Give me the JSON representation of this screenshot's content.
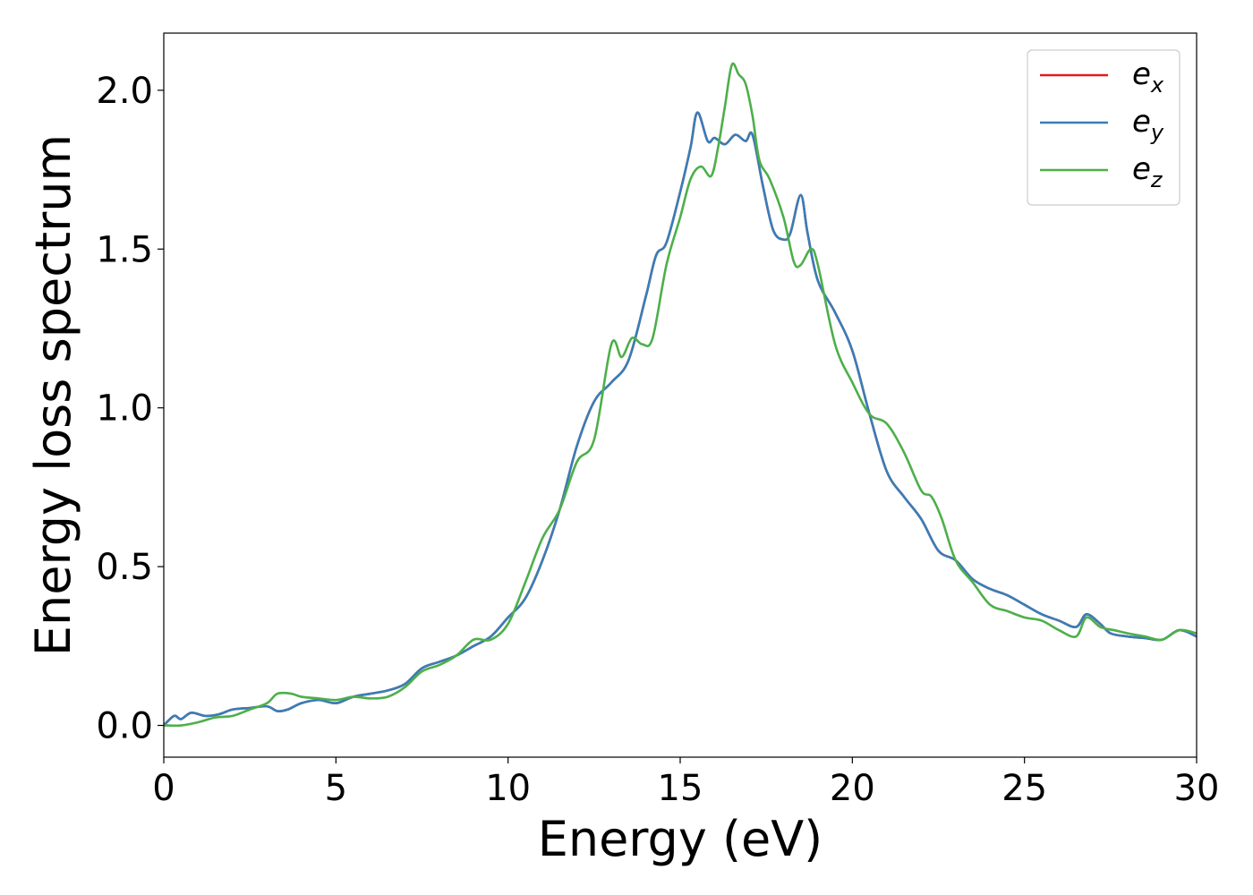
{
  "chart_data": {
    "type": "line",
    "title": "",
    "xlabel": "Energy (eV)",
    "ylabel": "Energy loss spectrum",
    "xlim": [
      0,
      30
    ],
    "ylim": [
      -0.1,
      2.18
    ],
    "xticks": [
      0,
      5,
      10,
      15,
      20,
      25,
      30
    ],
    "xtick_labels": [
      "0",
      "5",
      "10",
      "15",
      "20",
      "25",
      "30"
    ],
    "yticks": [
      0.0,
      0.5,
      1.0,
      1.5,
      2.0
    ],
    "ytick_labels": [
      "0.0",
      "0.5",
      "1.0",
      "1.5",
      "2.0"
    ],
    "grid": false,
    "legend_position": "top-right",
    "series": [
      {
        "name": "e",
        "subscript": "x",
        "color": "#e41a1c",
        "x": [
          0,
          0.3,
          0.5,
          0.8,
          1.2,
          1.6,
          2.0,
          2.5,
          3.0,
          3.3,
          3.6,
          4.0,
          4.5,
          5.0,
          5.5,
          6.0,
          6.5,
          7.0,
          7.5,
          8.0,
          8.5,
          9.0,
          9.5,
          10.0,
          10.5,
          11.0,
          11.5,
          12.0,
          12.5,
          13.0,
          13.5,
          14.0,
          14.3,
          14.6,
          15.0,
          15.3,
          15.5,
          15.8,
          16.0,
          16.3,
          16.6,
          16.9,
          17.1,
          17.4,
          17.7,
          18.0,
          18.2,
          18.5,
          18.7,
          19.0,
          19.5,
          20.0,
          20.5,
          21.0,
          21.5,
          22.0,
          22.5,
          23.0,
          23.5,
          24.0,
          24.5,
          25.0,
          25.5,
          26.0,
          26.5,
          26.8,
          27.2,
          27.5,
          28.0,
          28.5,
          29.0,
          29.5,
          30.0
        ],
        "values": [
          0.0,
          0.03,
          0.02,
          0.04,
          0.03,
          0.035,
          0.05,
          0.055,
          0.06,
          0.045,
          0.05,
          0.07,
          0.08,
          0.07,
          0.09,
          0.1,
          0.11,
          0.13,
          0.18,
          0.2,
          0.22,
          0.25,
          0.28,
          0.34,
          0.4,
          0.52,
          0.68,
          0.88,
          1.02,
          1.08,
          1.15,
          1.35,
          1.48,
          1.52,
          1.68,
          1.82,
          1.93,
          1.84,
          1.85,
          1.83,
          1.86,
          1.84,
          1.86,
          1.7,
          1.56,
          1.53,
          1.55,
          1.67,
          1.55,
          1.4,
          1.3,
          1.18,
          0.98,
          0.8,
          0.72,
          0.65,
          0.55,
          0.52,
          0.46,
          0.43,
          0.41,
          0.38,
          0.35,
          0.33,
          0.31,
          0.35,
          0.32,
          0.29,
          0.28,
          0.275,
          0.27,
          0.3,
          0.28
        ]
      },
      {
        "name": "e",
        "subscript": "y",
        "color": "#377eb8",
        "x": [
          0,
          0.3,
          0.5,
          0.8,
          1.2,
          1.6,
          2.0,
          2.5,
          3.0,
          3.3,
          3.6,
          4.0,
          4.5,
          5.0,
          5.5,
          6.0,
          6.5,
          7.0,
          7.5,
          8.0,
          8.5,
          9.0,
          9.5,
          10.0,
          10.5,
          11.0,
          11.5,
          12.0,
          12.5,
          13.0,
          13.5,
          14.0,
          14.3,
          14.6,
          15.0,
          15.3,
          15.5,
          15.8,
          16.0,
          16.3,
          16.6,
          16.9,
          17.1,
          17.4,
          17.7,
          18.0,
          18.2,
          18.5,
          18.7,
          19.0,
          19.5,
          20.0,
          20.5,
          21.0,
          21.5,
          22.0,
          22.5,
          23.0,
          23.5,
          24.0,
          24.5,
          25.0,
          25.5,
          26.0,
          26.5,
          26.8,
          27.2,
          27.5,
          28.0,
          28.5,
          29.0,
          29.5,
          30.0
        ],
        "values": [
          0.0,
          0.03,
          0.02,
          0.04,
          0.03,
          0.035,
          0.05,
          0.055,
          0.06,
          0.045,
          0.05,
          0.07,
          0.08,
          0.07,
          0.09,
          0.1,
          0.11,
          0.13,
          0.18,
          0.2,
          0.22,
          0.25,
          0.28,
          0.34,
          0.4,
          0.52,
          0.68,
          0.88,
          1.02,
          1.08,
          1.15,
          1.35,
          1.48,
          1.52,
          1.68,
          1.82,
          1.93,
          1.84,
          1.85,
          1.83,
          1.86,
          1.84,
          1.86,
          1.7,
          1.56,
          1.53,
          1.55,
          1.67,
          1.55,
          1.4,
          1.3,
          1.18,
          0.98,
          0.8,
          0.72,
          0.65,
          0.55,
          0.52,
          0.46,
          0.43,
          0.41,
          0.38,
          0.35,
          0.33,
          0.31,
          0.35,
          0.32,
          0.29,
          0.28,
          0.275,
          0.27,
          0.3,
          0.28
        ]
      },
      {
        "name": "e",
        "subscript": "z",
        "color": "#4daf4a",
        "x": [
          0,
          0.5,
          1.0,
          1.5,
          2.0,
          2.5,
          3.0,
          3.3,
          3.7,
          4.0,
          4.5,
          5.0,
          5.5,
          6.0,
          6.5,
          7.0,
          7.5,
          8.0,
          8.5,
          9.0,
          9.5,
          10.0,
          10.5,
          11.0,
          11.5,
          12.0,
          12.5,
          13.0,
          13.3,
          13.6,
          13.9,
          14.2,
          14.6,
          15.0,
          15.3,
          15.6,
          15.9,
          16.1,
          16.3,
          16.5,
          16.7,
          16.9,
          17.1,
          17.3,
          17.6,
          18.0,
          18.3,
          18.5,
          18.8,
          19.0,
          19.5,
          20.0,
          20.5,
          21.0,
          21.5,
          22.0,
          22.3,
          22.6,
          23.0,
          23.5,
          24.0,
          24.5,
          25.0,
          25.5,
          26.0,
          26.5,
          26.8,
          27.2,
          27.6,
          28.0,
          28.5,
          29.0,
          29.5,
          30.0
        ],
        "values": [
          0.0,
          0.0,
          0.01,
          0.025,
          0.03,
          0.05,
          0.07,
          0.1,
          0.1,
          0.09,
          0.085,
          0.08,
          0.09,
          0.085,
          0.09,
          0.12,
          0.17,
          0.19,
          0.22,
          0.27,
          0.27,
          0.32,
          0.45,
          0.59,
          0.68,
          0.83,
          0.9,
          1.2,
          1.16,
          1.22,
          1.2,
          1.22,
          1.45,
          1.6,
          1.72,
          1.76,
          1.73,
          1.82,
          1.95,
          2.08,
          2.05,
          2.02,
          1.92,
          1.78,
          1.72,
          1.6,
          1.46,
          1.45,
          1.5,
          1.45,
          1.2,
          1.08,
          0.98,
          0.95,
          0.86,
          0.74,
          0.72,
          0.65,
          0.52,
          0.45,
          0.38,
          0.36,
          0.34,
          0.33,
          0.3,
          0.28,
          0.34,
          0.31,
          0.3,
          0.29,
          0.28,
          0.27,
          0.3,
          0.29
        ]
      }
    ]
  }
}
